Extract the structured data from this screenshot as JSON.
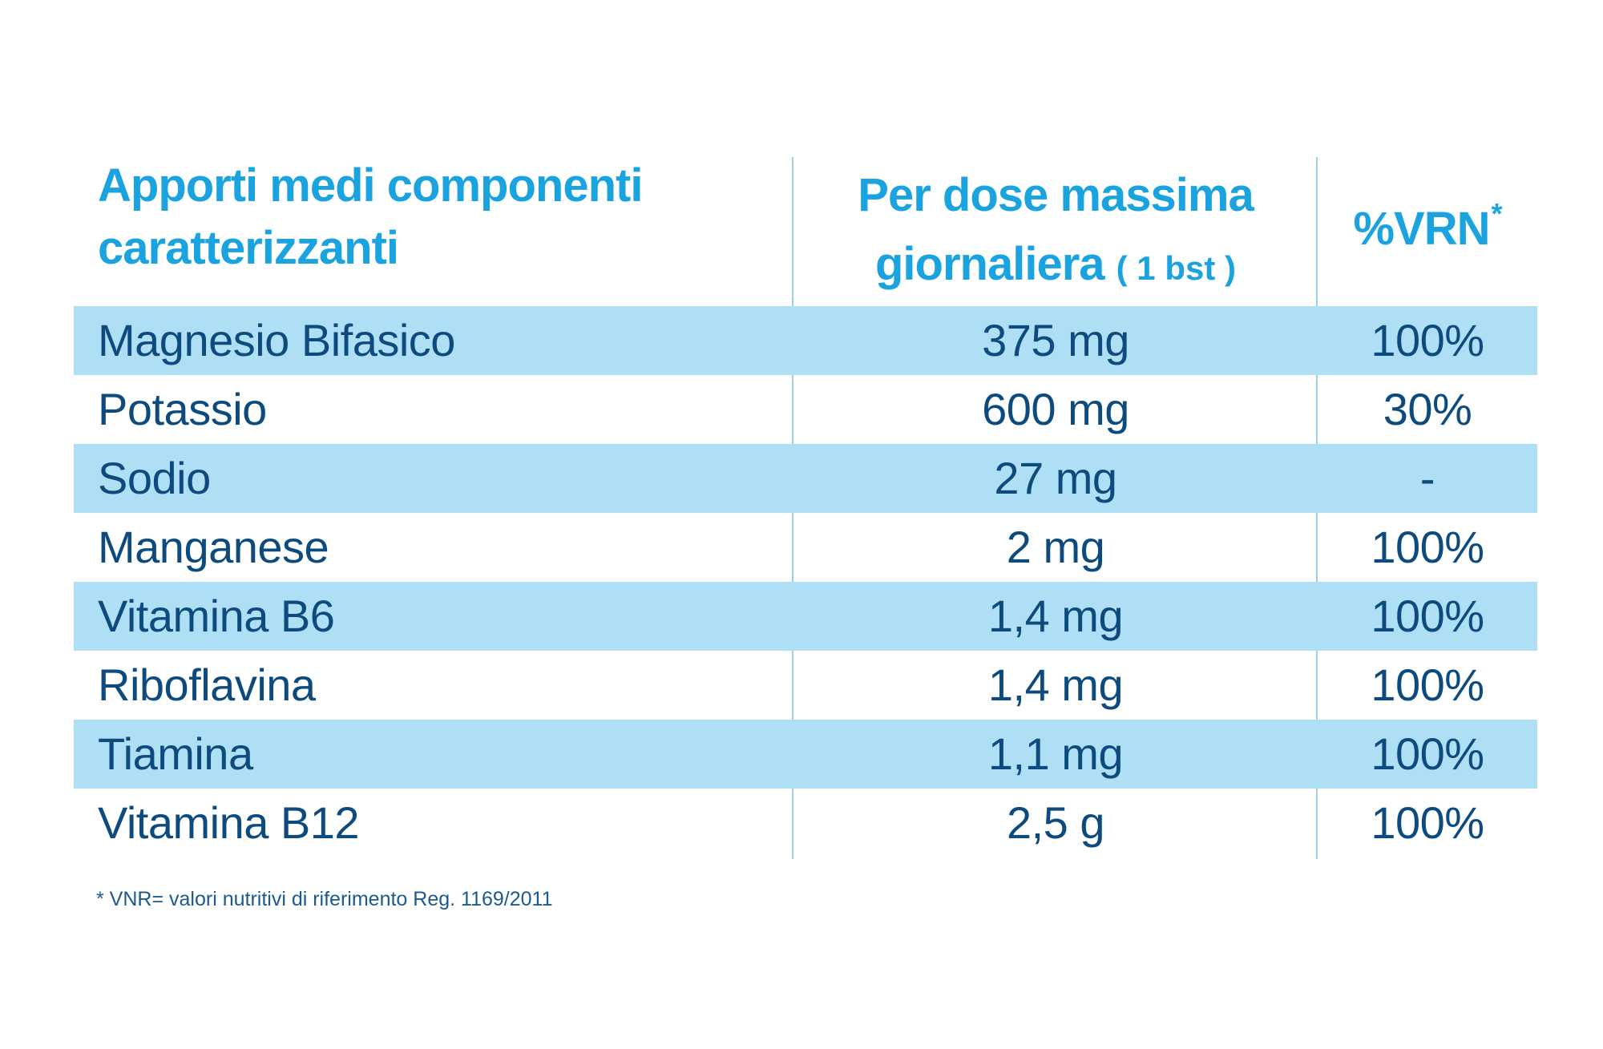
{
  "header": {
    "col1_line1": "Apporti medi componenti",
    "col1_line2": "caratterizzanti",
    "col2_line1": "Per dose massima",
    "col2_line2_main": "giornaliera",
    "col2_line2_small": "( 1 bst )",
    "col3_main": "%VRN",
    "col3_sup": "*"
  },
  "rows": [
    {
      "name": "Magnesio Bifasico",
      "dose": "375 mg",
      "vrn": "100%"
    },
    {
      "name": "Potassio",
      "dose": "600 mg",
      "vrn": "30%"
    },
    {
      "name": "Sodio",
      "dose": "27 mg",
      "vrn": "-"
    },
    {
      "name": "Manganese",
      "dose": "2 mg",
      "vrn": "100%"
    },
    {
      "name": "Vitamina B6",
      "dose": "1,4 mg",
      "vrn": "100%"
    },
    {
      "name": "Riboflavina",
      "dose": "1,4 mg",
      "vrn": "100%"
    },
    {
      "name": "Tiamina",
      "dose": "1,1 mg",
      "vrn": "100%"
    },
    {
      "name": "Vitamina B12",
      "dose": "2,5 g",
      "vrn": "100%"
    }
  ],
  "footnote": "* VNR= valori nutritivi di riferimento Reg. 1169/2011",
  "colors": {
    "header_text": "#1ba3df",
    "body_text": "#0d4a7d",
    "row_shade": "#aedff5",
    "divider": "#9bcde9"
  }
}
